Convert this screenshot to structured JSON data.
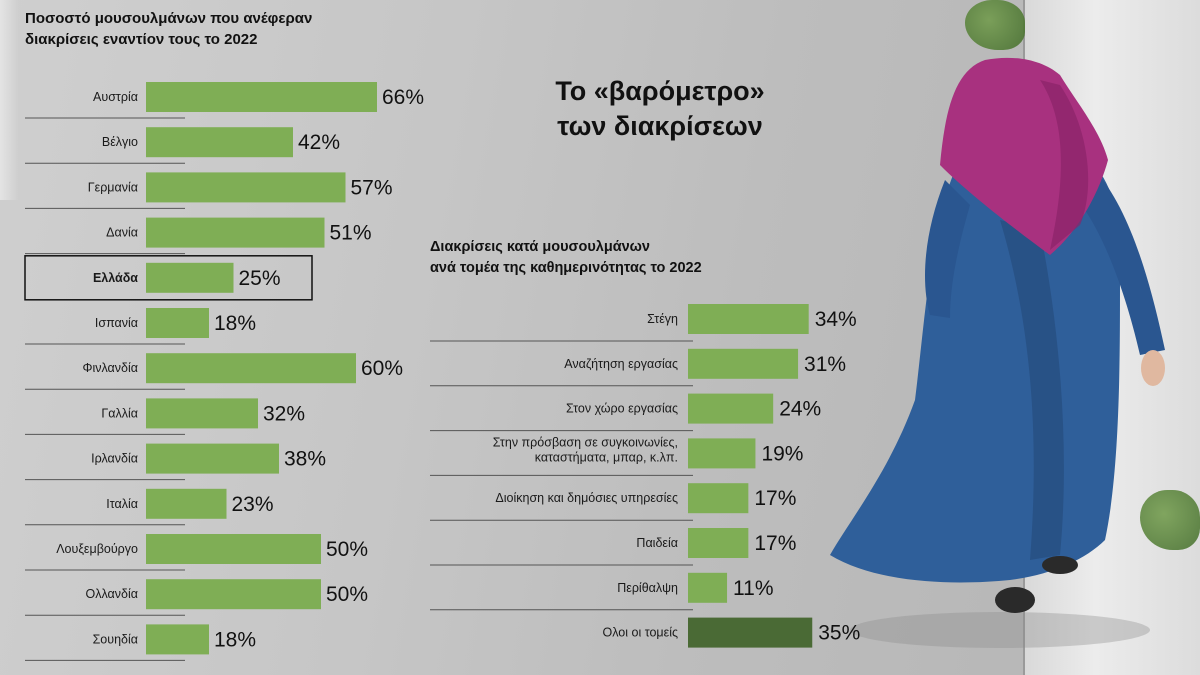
{
  "colors": {
    "bar": "#7fae55",
    "bar_total": "#4a6a35",
    "divider": "#555555"
  },
  "headline": {
    "line1": "Το «βαρόμετρο»",
    "line2": "των διακρίσεων"
  },
  "chart_data": [
    {
      "type": "bar",
      "orientation": "horizontal",
      "title_line1": "Ποσοστό μουσουλμάνων που ανέφεραν",
      "title_line2": "διακρίσεις εναντίον τους το 2022",
      "categories": [
        "Αυστρία",
        "Βέλγιο",
        "Γερμανία",
        "Δανία",
        "Ελλάδα",
        "Ισπανία",
        "Φινλανδία",
        "Γαλλία",
        "Ιρλανδία",
        "Ιταλία",
        "Λουξεμβούργο",
        "Ολλανδία",
        "Σουηδία"
      ],
      "values": [
        66,
        42,
        57,
        51,
        25,
        18,
        60,
        32,
        38,
        23,
        50,
        50,
        18
      ],
      "value_labels": [
        "66%",
        "42%",
        "57%",
        "51%",
        "25%",
        "18%",
        "60%",
        "32%",
        "38%",
        "23%",
        "50%",
        "50%",
        "18%"
      ],
      "highlighted": "Ελλάδα",
      "unit": "%"
    },
    {
      "type": "bar",
      "orientation": "horizontal",
      "title_line1": "Διακρίσεις κατά μουσουλμάνων",
      "title_line2": "ανά τομέα της καθημερινότητας το 2022",
      "categories": [
        [
          "Στέγη"
        ],
        [
          "Αναζήτηση εργασίας"
        ],
        [
          "Στον χώρο εργασίας"
        ],
        [
          "Στην πρόσβαση σε συγκοινωνίες,",
          "καταστήματα, μπαρ, κ.λπ."
        ],
        [
          "Διοίκηση και δημόσιες υπηρεσίες"
        ],
        [
          "Παιδεία"
        ],
        [
          "Περίθαλψη"
        ],
        [
          "Ολοι οι τομείς"
        ]
      ],
      "values": [
        34,
        31,
        24,
        19,
        17,
        17,
        11,
        35
      ],
      "value_labels": [
        "34%",
        "31%",
        "24%",
        "19%",
        "17%",
        "17%",
        "11%",
        "35%"
      ],
      "highlighted": "Ολοι οι τομείς",
      "unit": "%"
    }
  ]
}
